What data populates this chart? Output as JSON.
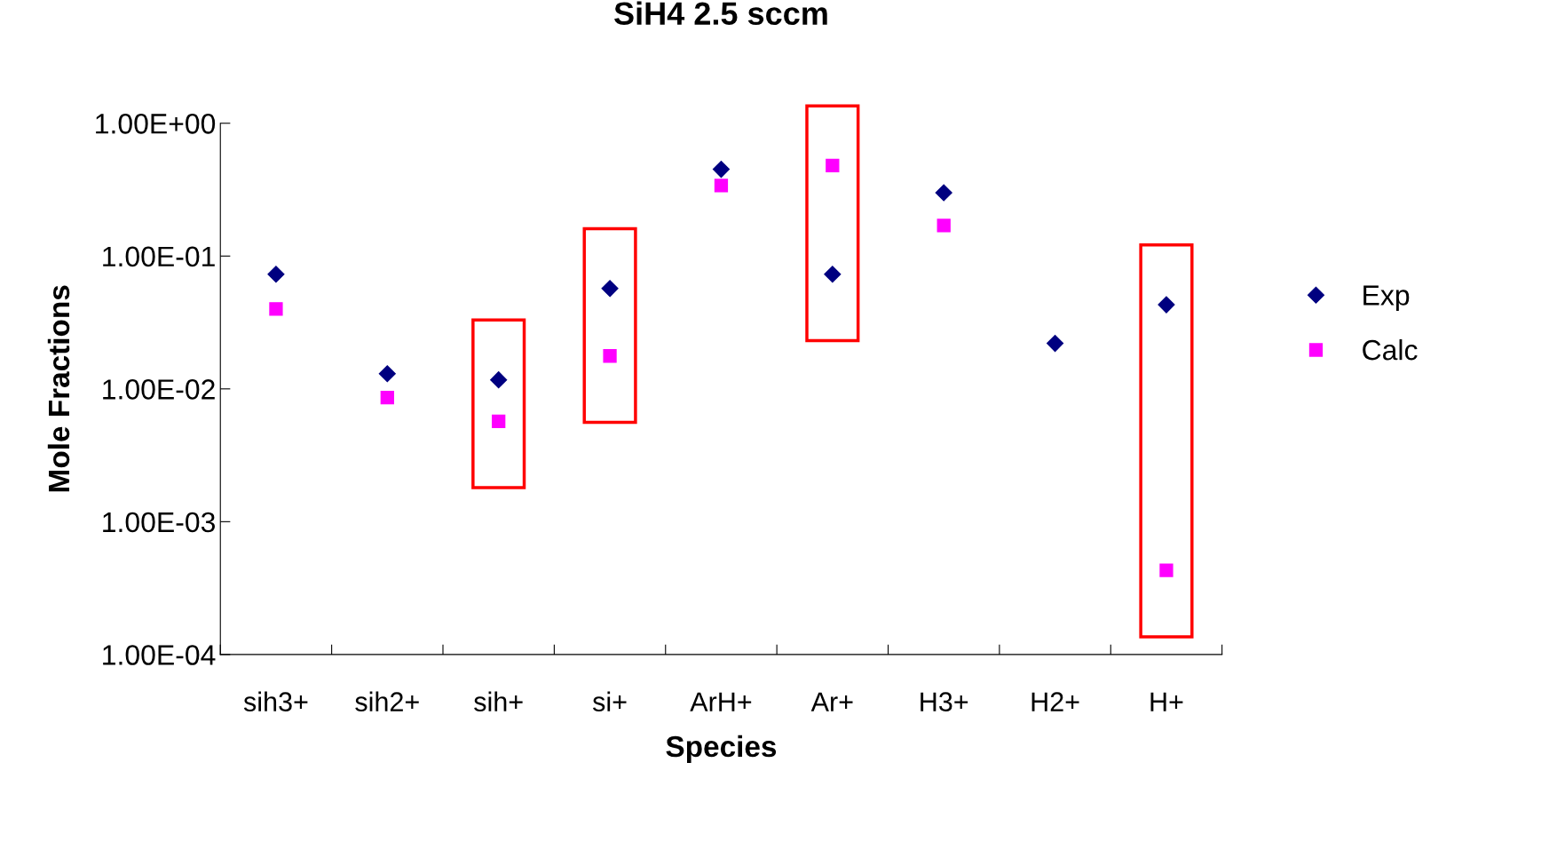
{
  "chart_data": {
    "type": "scatter",
    "title": "SiH4 2.5 sccm",
    "xlabel": "Species",
    "ylabel": "Mole Fractions",
    "categories": [
      "sih3+",
      "sih2+",
      "sih+",
      "si+",
      "ArH+",
      "Ar+",
      "H3+",
      "H2+",
      "H+"
    ],
    "series": [
      {
        "name": "Exp",
        "color": "#000080",
        "marker": "diamond",
        "values": [
          0.073,
          0.013,
          0.0117,
          0.057,
          0.45,
          0.073,
          0.3,
          0.022,
          0.043
        ]
      },
      {
        "name": "Calc",
        "color": "#ff00ff",
        "marker": "square",
        "values": [
          0.04,
          0.0086,
          0.0057,
          0.0177,
          0.34,
          0.48,
          0.17,
          null,
          0.00043
        ]
      }
    ],
    "log": "y",
    "ylim": [
      0.0001,
      1
    ],
    "yticks": [
      {
        "value": 0.0001,
        "label": "1.00E-04"
      },
      {
        "value": 0.001,
        "label": "1.00E-03"
      },
      {
        "value": 0.01,
        "label": "1.00E-02"
      },
      {
        "value": 0.1,
        "label": "1.00E-01"
      },
      {
        "value": 1,
        "label": "1.00E+00"
      }
    ],
    "grid": false,
    "legend": "right"
  }
}
